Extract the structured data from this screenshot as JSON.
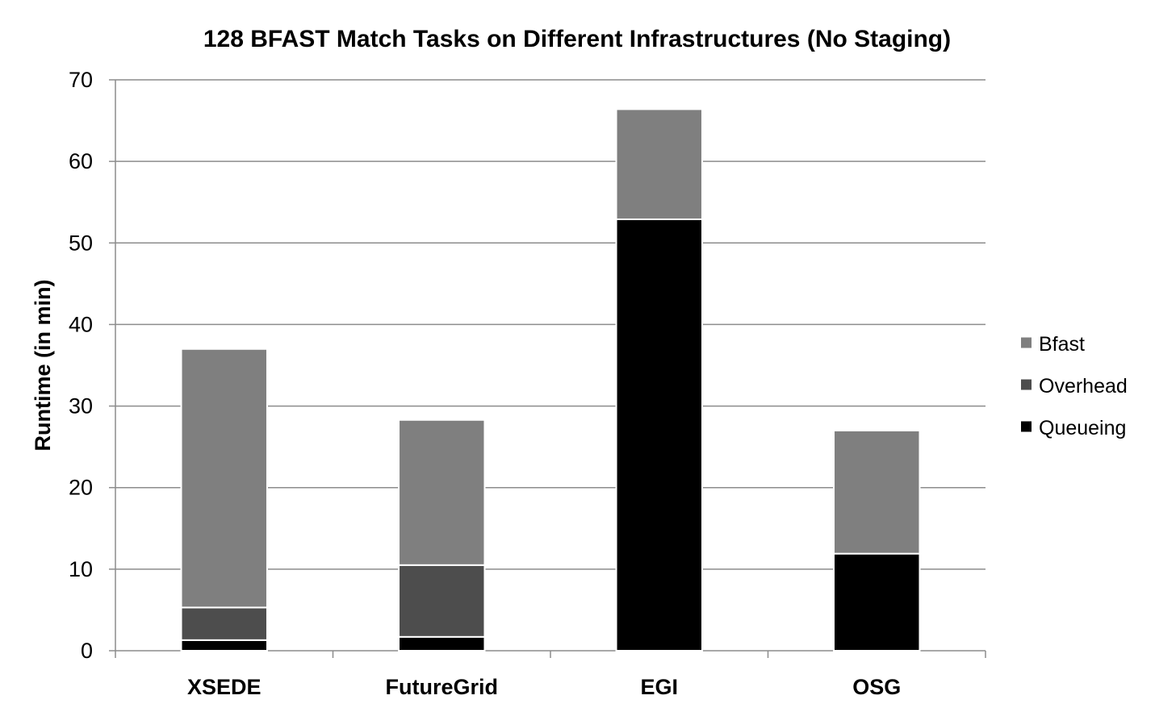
{
  "chart_data": {
    "type": "bar",
    "stacked": true,
    "title": "128 BFAST Match Tasks on Different Infrastructures (No Staging)",
    "xlabel": "",
    "ylabel": "Runtime (in min)",
    "ylim": [
      0,
      70
    ],
    "yticks": [
      "0",
      "10",
      "20",
      "30",
      "40",
      "50",
      "60",
      "70"
    ],
    "grid": true,
    "legend_position": "right",
    "categories": [
      "XSEDE",
      "FutureGrid",
      "EGI",
      "OSG"
    ],
    "series": [
      {
        "name": "Queueing",
        "color": "#000000",
        "values": [
          1.3,
          1.7,
          52.9,
          11.9
        ]
      },
      {
        "name": "Overhead",
        "color": "#4d4d4d",
        "values": [
          4.0,
          8.8,
          0,
          0
        ]
      },
      {
        "name": "Bfast",
        "color": "#7f7f7f",
        "values": [
          31.7,
          17.8,
          13.5,
          15.1
        ]
      }
    ],
    "legend_order": [
      "Bfast",
      "Overhead",
      "Queueing"
    ]
  }
}
